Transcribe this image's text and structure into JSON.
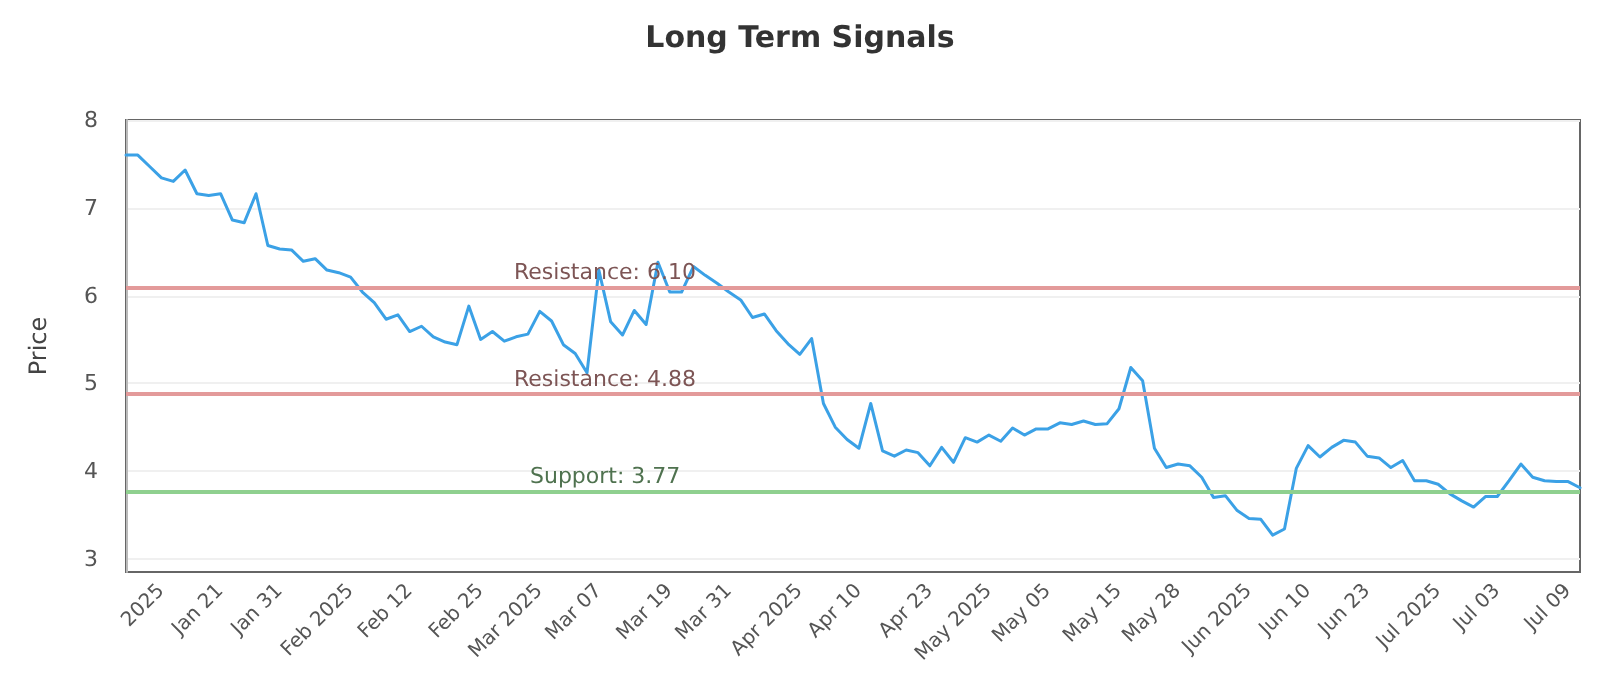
{
  "chart_data": {
    "type": "line",
    "title": "Long Term Signals",
    "ylabel": "Price",
    "categories": [
      null,
      null,
      null,
      "2025",
      null,
      null,
      null,
      null,
      "Jan 21",
      null,
      null,
      null,
      null,
      "Jan 31",
      null,
      null,
      null,
      null,
      null,
      "Feb 2025",
      null,
      null,
      null,
      null,
      "Feb 12",
      null,
      null,
      null,
      null,
      null,
      "Feb 25",
      null,
      null,
      null,
      null,
      "Mar 2025",
      null,
      null,
      null,
      null,
      "Mar 07",
      null,
      null,
      null,
      null,
      null,
      "Mar 19",
      null,
      null,
      null,
      null,
      "Mar 31",
      null,
      null,
      null,
      null,
      null,
      "Apr 2025",
      null,
      null,
      null,
      null,
      "Apr 10",
      null,
      null,
      null,
      null,
      null,
      "Apr 23",
      null,
      null,
      null,
      null,
      "May 2025",
      null,
      null,
      null,
      null,
      "May 05",
      null,
      null,
      null,
      null,
      null,
      "May 15",
      null,
      null,
      null,
      null,
      "May 28",
      null,
      null,
      null,
      null,
      null,
      "Jun 2025",
      null,
      null,
      null,
      null,
      "Jun 10",
      null,
      null,
      null,
      null,
      "Jun 23",
      null,
      null,
      null,
      null,
      null,
      "Jul 2025",
      null,
      null,
      null,
      null,
      "Jul 03",
      null,
      null,
      null,
      null,
      null,
      "Jul 09",
      null
    ],
    "series": [
      {
        "color": "#3ba1e6",
        "values": [
          7.6,
          7.6,
          7.47,
          7.34,
          7.3,
          7.43,
          7.16,
          7.14,
          7.16,
          6.86,
          6.83,
          7.16,
          6.57,
          6.53,
          6.52,
          6.39,
          6.42,
          6.29,
          6.26,
          6.21,
          6.04,
          5.92,
          5.73,
          5.78,
          5.59,
          5.65,
          5.53,
          5.47,
          5.44,
          5.88,
          5.5,
          5.59,
          5.48,
          5.53,
          5.56,
          5.82,
          5.71,
          5.44,
          5.34,
          5.12,
          6.29,
          5.7,
          5.55,
          5.83,
          5.67,
          6.38,
          6.04,
          6.04,
          6.33,
          6.23,
          6.14,
          6.04,
          5.95,
          5.75,
          5.79,
          5.6,
          5.45,
          5.33,
          5.51,
          4.77,
          4.5,
          4.36,
          4.26,
          4.77,
          4.23,
          4.17,
          4.24,
          4.21,
          4.06,
          4.27,
          4.1,
          4.38,
          4.33,
          4.41,
          4.34,
          4.49,
          4.41,
          4.48,
          4.48,
          4.55,
          4.53,
          4.57,
          4.53,
          4.54,
          4.71,
          5.18,
          5.03,
          4.26,
          4.04,
          4.08,
          4.06,
          3.93,
          3.7,
          3.72,
          3.55,
          3.46,
          3.45,
          3.27,
          3.34,
          4.03,
          4.29,
          4.16,
          4.27,
          4.35,
          4.33,
          4.17,
          4.15,
          4.04,
          4.12,
          3.89,
          3.89,
          3.85,
          3.74,
          3.66,
          3.59,
          3.71,
          3.71,
          3.89,
          4.08,
          3.93,
          3.89,
          3.88,
          3.88,
          3.81
        ]
      }
    ],
    "ylim": [
      2.85,
      8
    ],
    "yticks": [
      3,
      4,
      5,
      6,
      7,
      8
    ],
    "grid": "y",
    "marker": "none",
    "line_style": "solid",
    "ref_lines": [
      {
        "axis": "y",
        "value": 6.1,
        "label": "Resistance: 6.10",
        "color": "#e39a9a"
      },
      {
        "axis": "y",
        "value": 4.88,
        "label": "Resistance: 4.88",
        "color": "#e39a9a"
      },
      {
        "axis": "y",
        "value": 3.77,
        "label": "Support: 3.77",
        "color": "#8fd08f"
      }
    ]
  }
}
